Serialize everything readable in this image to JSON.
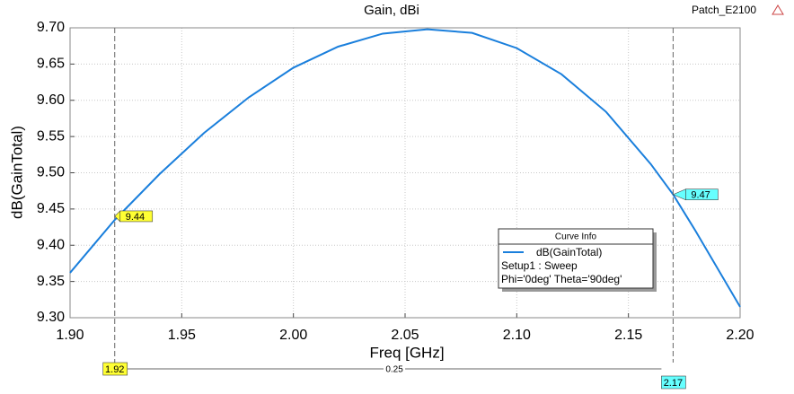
{
  "chart_data": {
    "type": "line",
    "title": "Gain, dBi",
    "design": "Patch_E2100",
    "x_label": "Freq [GHz]",
    "y_label": "dB(GainTotal)",
    "x": [
      1.9,
      1.92,
      1.94,
      1.96,
      1.98,
      2.0,
      2.02,
      2.04,
      2.06,
      2.08,
      2.1,
      2.12,
      2.14,
      2.16,
      2.17,
      2.18,
      2.2
    ],
    "series": [
      {
        "name": "dB(GainTotal)",
        "color": "#1a7fdc",
        "setup": "Setup1 : Sweep",
        "variation": "Phi='0deg' Theta='90deg'",
        "values": [
          9.362,
          9.435,
          9.498,
          9.555,
          9.604,
          9.645,
          9.674,
          9.692,
          9.698,
          9.693,
          9.672,
          9.636,
          9.584,
          9.512,
          9.47,
          9.42,
          9.315
        ]
      }
    ],
    "legend_title": "Curve Info",
    "xlim": [
      1.9,
      2.2
    ],
    "xticks": [
      {
        "value": 1.9,
        "label": "1.90"
      },
      {
        "value": 1.95,
        "label": "1.95"
      },
      {
        "value": 2.0,
        "label": "2.00"
      },
      {
        "value": 2.05,
        "label": "2.05"
      },
      {
        "value": 2.1,
        "label": "2.10"
      },
      {
        "value": 2.15,
        "label": "2.15"
      },
      {
        "value": 2.2,
        "label": "2.20"
      }
    ],
    "ylim": [
      9.3,
      9.7
    ],
    "yticks": [
      {
        "value": 9.3,
        "label": "9.30"
      },
      {
        "value": 9.35,
        "label": "9.35"
      },
      {
        "value": 9.4,
        "label": "9.40"
      },
      {
        "value": 9.45,
        "label": "9.45"
      },
      {
        "value": 9.5,
        "label": "9.50"
      },
      {
        "value": 9.55,
        "label": "9.55"
      },
      {
        "value": 9.6,
        "label": "9.60"
      },
      {
        "value": 9.65,
        "label": "9.65"
      },
      {
        "value": 9.7,
        "label": "9.70"
      }
    ],
    "grid": true,
    "markers": [
      {
        "x": 1.92,
        "y": 9.44,
        "color": "#ffff33"
      },
      {
        "x": 2.17,
        "y": 9.47,
        "color": "#66ffff"
      }
    ],
    "delta": 0.25
  }
}
